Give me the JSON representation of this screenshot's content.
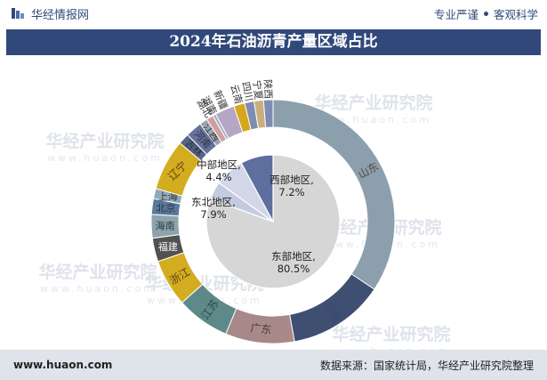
{
  "header": {
    "brand": "华经情报网",
    "tagline_left": "专业严谨",
    "tagline_right": "客观科学"
  },
  "title": "2024年石油沥青产量区域占比",
  "watermark": "华经产业研究院",
  "watermark_url": "www.huaon.com",
  "footer": {
    "website": "www.huaon.com",
    "source": "数据来源：国家统计局，华经产业研究院整理"
  },
  "colors": {
    "title_bg": "#30497a",
    "footer_bg": "#dfe3ea",
    "brand": "#2f4b7c"
  },
  "chart_data": {
    "type": "pie",
    "inner": {
      "categories": [
        "东部地区",
        "中部地区",
        "西部地区",
        "东北地区"
      ],
      "values": [
        80.5,
        4.4,
        7.2,
        7.9
      ],
      "labels": [
        "东部地区,\n80.5%",
        "中部地区,\n4.4%",
        "西部地区,\n7.2%",
        "东北地区,\n7.9%"
      ],
      "colors": [
        "#d6d6d6",
        "#c3cbe1",
        "#d1d7e6",
        "#5c6f9e"
      ]
    },
    "outer": {
      "categories": [
        "山东",
        "河北",
        "广东",
        "江苏",
        "浙江",
        "福建",
        "海南",
        "北京",
        "上海",
        "辽宁",
        "吉林",
        "河南",
        "江西",
        "湖北",
        "湖南",
        "新疆",
        "云南",
        "四川",
        "宁夏",
        "陕西"
      ],
      "values": [
        33.0,
        12.3,
        8.8,
        6.8,
        6.0,
        3.0,
        3.0,
        2.0,
        1.3,
        6.5,
        1.4,
        2.1,
        1.0,
        0.9,
        0.4,
        2.5,
        1.4,
        1.2,
        1.2,
        1.2
      ],
      "colors": [
        "#8c9fad",
        "#3e4f72",
        "#a88888",
        "#5d8a88",
        "#d4ac1f",
        "#525252",
        "#8da4ad",
        "#5a7a9c",
        "#8ea9bb",
        "#d4ac1f",
        "#566485",
        "#66719c",
        "#99a3b0",
        "#cf9fa5",
        "#9fb0c0",
        "#b5a7c4",
        "#d6a61c",
        "#7d8cb0",
        "#c8b07c",
        "#7d8cb0"
      ],
      "label_colors": [
        "#5a4a3a",
        "#3a4770",
        "#4d4040",
        "#2e4848",
        "#594516",
        "#ffffff",
        "#2a3540",
        "#2a3540",
        "#333333",
        "#594516",
        "#2a3540",
        "#2a3540",
        "#333333",
        "#333333",
        "#333333",
        "#333333",
        "#333333",
        "#333333",
        "#333333",
        "#333333"
      ]
    }
  }
}
